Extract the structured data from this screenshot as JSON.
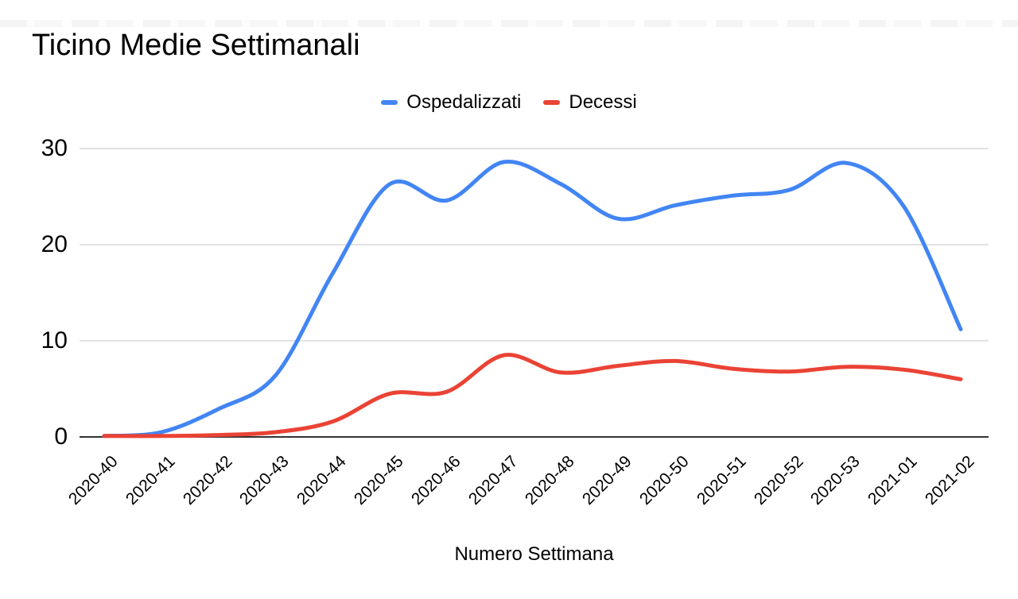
{
  "page": {
    "title": "Ticino Medie Settimanali"
  },
  "chart_data": {
    "type": "line",
    "smooth": true,
    "title": "Ticino Medie Settimanali",
    "xlabel": "Numero Settimana",
    "ylabel": "",
    "categories": [
      "2020-40",
      "2020-41",
      "2020-42",
      "2020-43",
      "2020-44",
      "2020-45",
      "2020-46",
      "2020-47",
      "2020-48",
      "2020-49",
      "2020-50",
      "2020-51",
      "2020-52",
      "2020-53",
      "2021-01",
      "2021-02"
    ],
    "series": [
      {
        "name": "Ospedalizzati",
        "color": "#4285F4",
        "values": [
          0.1,
          0.5,
          2.9,
          6.4,
          17.0,
          26.3,
          24.6,
          28.6,
          26.3,
          22.7,
          24.1,
          25.1,
          25.7,
          28.5,
          24.0,
          11.2
        ]
      },
      {
        "name": "Decessi",
        "color": "#EA4335",
        "values": [
          0.1,
          0.1,
          0.2,
          0.5,
          1.6,
          4.5,
          4.7,
          8.5,
          6.7,
          7.4,
          7.9,
          7.1,
          6.8,
          7.3,
          7.0,
          6.0
        ]
      }
    ],
    "yticks": [
      0,
      10,
      20,
      30
    ],
    "ylim": [
      0,
      30
    ],
    "legend_position": "top",
    "grid": true,
    "gridline_color": "#D9D9D9",
    "axis_line_color": "#333333",
    "text_color": "#000000"
  }
}
